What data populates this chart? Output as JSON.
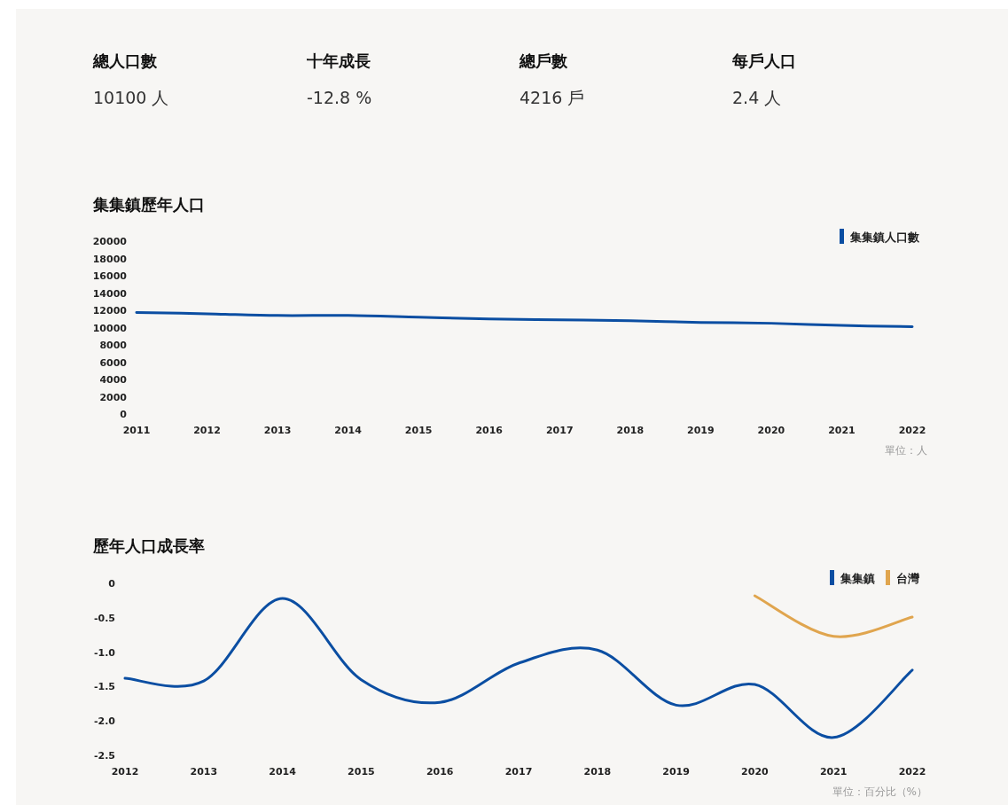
{
  "chart_data": [
    {
      "type": "other",
      "annotations": [
        "總人口數",
        "10100 人",
        "十年成長",
        "-12.8 %",
        "總戶數",
        "4216 戶",
        "每戶人口",
        "2.4 人"
      ]
    },
    {
      "type": "line",
      "title": "集集鎮歷年人口",
      "categories": [
        "2011",
        "2012",
        "2013",
        "2014",
        "2015",
        "2016",
        "2017",
        "2018",
        "2019",
        "2020",
        "2021",
        "2022"
      ],
      "series": [
        {
          "name": "集集鎮人口數",
          "color": "#0b4ea2",
          "values": [
            11750,
            11600,
            11400,
            11400,
            11200,
            11000,
            10900,
            10800,
            10600,
            10500,
            10250,
            10100
          ]
        }
      ],
      "ylim": [
        0,
        20000
      ],
      "yticks": [
        0,
        2000,
        4000,
        6000,
        8000,
        10000,
        12000,
        14000,
        16000,
        18000,
        20000
      ],
      "legend": "top right",
      "annotations": [
        "單位：人"
      ]
    },
    {
      "type": "line",
      "title": "歷年人口成長率",
      "categories": [
        "2012",
        "2013",
        "2014",
        "2015",
        "2016",
        "2017",
        "2018",
        "2019",
        "2020",
        "2021",
        "2022"
      ],
      "series": [
        {
          "name": "集集鎮",
          "color": "#0b4ea2",
          "values": [
            -1.38,
            -1.42,
            -0.22,
            -1.4,
            -1.73,
            -1.16,
            -0.97,
            -1.77,
            -1.47,
            -2.24,
            -1.26
          ]
        },
        {
          "name": "台灣",
          "color": "#e0a54e",
          "values": [
            null,
            null,
            null,
            null,
            null,
            null,
            null,
            null,
            -0.18,
            -0.77,
            -0.49
          ]
        }
      ],
      "ylim": [
        -2.5,
        0
      ],
      "yticks": [
        {
          "value": -2.5,
          "label": "-2.5"
        },
        {
          "value": -2,
          "label": "-2.0"
        },
        {
          "value": -1.5,
          "label": "-1.5"
        },
        {
          "value": -1,
          "label": "-1.0"
        },
        {
          "value": -0.5,
          "label": "-0.5"
        },
        0
      ],
      "legend": "top right",
      "annotations": [
        "單位：百分比（%）"
      ]
    }
  ]
}
